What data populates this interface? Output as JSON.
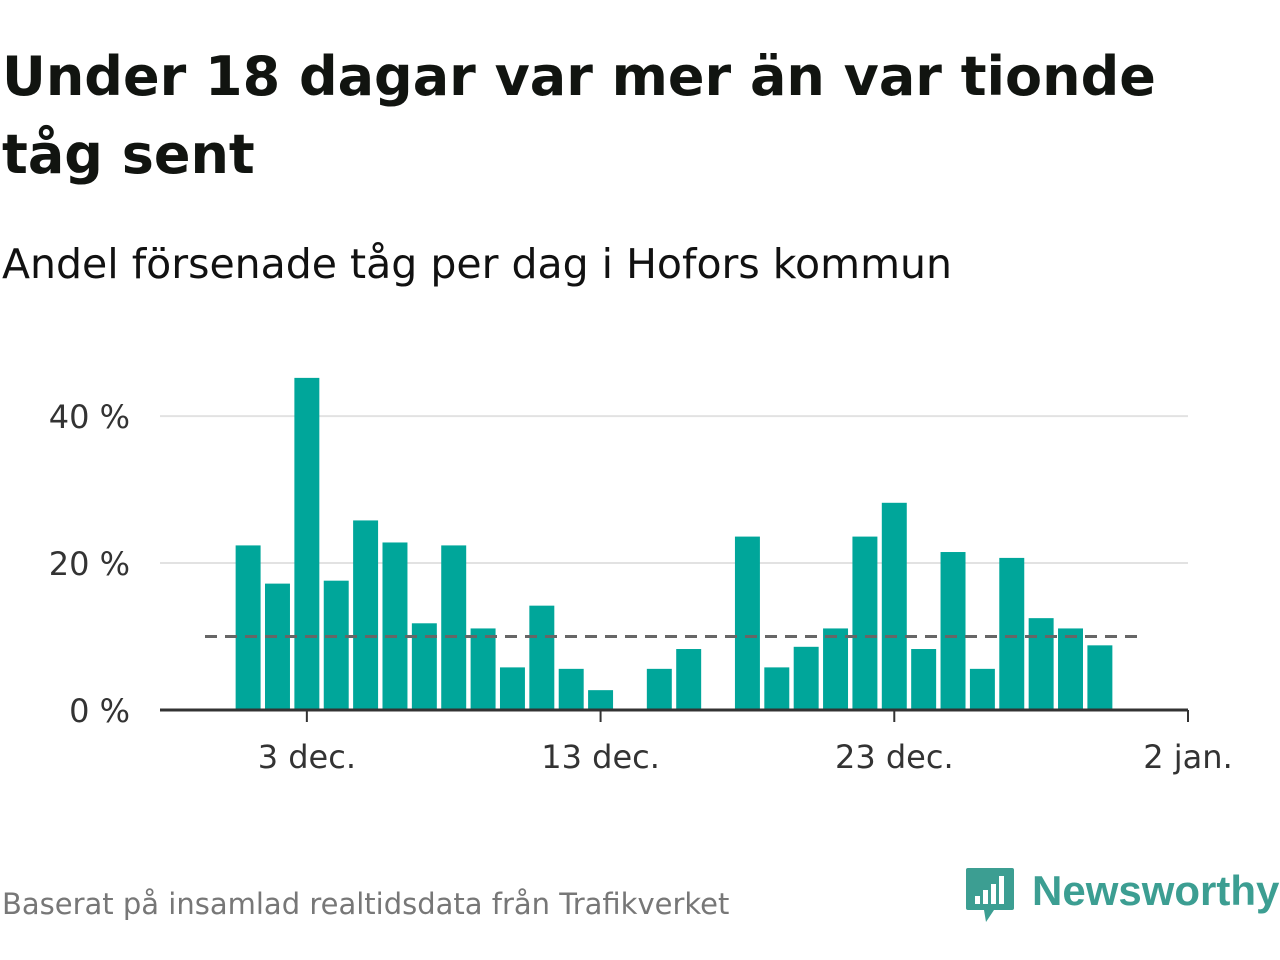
{
  "title": "Under 18 dagar var mer än var tionde tåg sent",
  "subtitle": "Andel försenade tåg per dag i Hofors kommun",
  "source": "Baserat på insamlad realtidsdata från Trafikverket",
  "brand": {
    "name": "Newsworthy",
    "icon": "newsworthy-logo-icon",
    "color": "#3c9e92"
  },
  "colors": {
    "bar": "#00a69a",
    "grid": "#e2e2e2",
    "axis": "#333333",
    "reference": "#666666",
    "title": "#111410",
    "source": "#777777"
  },
  "chart_data": {
    "type": "bar",
    "title": "Under 18 dagar var mer än var tionde tåg sent",
    "subtitle": "Andel försenade tåg per dag i Hofors kommun",
    "x": [
      "2023-12-01",
      "2023-12-02",
      "2023-12-03",
      "2023-12-04",
      "2023-12-05",
      "2023-12-06",
      "2023-12-07",
      "2023-12-08",
      "2023-12-09",
      "2023-12-10",
      "2023-12-11",
      "2023-12-12",
      "2023-12-13",
      "2023-12-14",
      "2023-12-15",
      "2023-12-16",
      "2023-12-17",
      "2023-12-18",
      "2023-12-19",
      "2023-12-20",
      "2023-12-21",
      "2023-12-22",
      "2023-12-23",
      "2023-12-24",
      "2023-12-25",
      "2023-12-26",
      "2023-12-27",
      "2023-12-28",
      "2023-12-29",
      "2023-12-30",
      "2023-12-31"
    ],
    "values": [
      22.4,
      17.2,
      45.2,
      17.6,
      25.8,
      22.8,
      11.8,
      22.4,
      11.1,
      5.8,
      14.2,
      5.6,
      2.7,
      0,
      5.6,
      8.3,
      0,
      23.6,
      5.8,
      8.6,
      11.1,
      23.6,
      28.2,
      8.3,
      21.5,
      5.6,
      20.7,
      12.5,
      11.1,
      8.8,
      null
    ],
    "reference_line": {
      "value": 10,
      "style": "dashed"
    },
    "x_ticks": [
      {
        "value": "2023-12-03",
        "label": "3 dec."
      },
      {
        "value": "2023-12-13",
        "label": "13 dec."
      },
      {
        "value": "2023-12-23",
        "label": "23 dec."
      },
      {
        "value": "2024-01-02",
        "label": "2 jan."
      }
    ],
    "y_ticks": [
      {
        "value": 0,
        "label": "0 %"
      },
      {
        "value": 20,
        "label": "20 %"
      },
      {
        "value": 40,
        "label": "40 %"
      }
    ],
    "ylim": [
      0,
      46
    ],
    "xlim": [
      "2023-11-28",
      "2024-01-02"
    ],
    "grid": true,
    "legend": "none"
  }
}
